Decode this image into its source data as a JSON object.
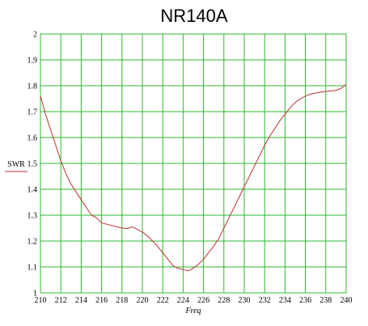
{
  "chart_data": {
    "type": "line",
    "title": "NR140A",
    "xlabel": "Freq",
    "ylabel": "",
    "xlim": [
      210,
      240
    ],
    "ylim": [
      1,
      2
    ],
    "x_ticks": [
      210,
      212,
      214,
      216,
      218,
      220,
      222,
      224,
      226,
      228,
      230,
      232,
      234,
      236,
      238,
      240
    ],
    "y_ticks": [
      1,
      1.1,
      1.2,
      1.3,
      1.4,
      1.5,
      1.6,
      1.7,
      1.8,
      1.9,
      2
    ],
    "grid": true,
    "grid_color": "#2db82d",
    "line_color": "#c03030",
    "legend": {
      "position": "left",
      "entries": [
        {
          "name": "SWR",
          "color": "#c03030"
        }
      ]
    },
    "series": [
      {
        "name": "SWR",
        "x": [
          210,
          210.5,
          211,
          211.5,
          212,
          212.5,
          213,
          213.5,
          214,
          214.5,
          215,
          215.5,
          216,
          216.5,
          217,
          217.5,
          218,
          218.5,
          219,
          219.5,
          220,
          220.5,
          221,
          221.5,
          222,
          222.5,
          223,
          223.5,
          224,
          224.5,
          225,
          225.5,
          226,
          226.5,
          227,
          227.5,
          228,
          228.5,
          229,
          229.5,
          230,
          230.5,
          231,
          231.5,
          232,
          232.5,
          233,
          233.5,
          234,
          234.5,
          235,
          235.5,
          236,
          236.5,
          237,
          237.5,
          238,
          238.5,
          239,
          239.5,
          240
        ],
        "values": [
          1.76,
          1.69,
          1.63,
          1.57,
          1.51,
          1.46,
          1.42,
          1.39,
          1.36,
          1.33,
          1.3,
          1.29,
          1.27,
          1.265,
          1.26,
          1.255,
          1.25,
          1.248,
          1.255,
          1.245,
          1.235,
          1.22,
          1.2,
          1.18,
          1.155,
          1.13,
          1.105,
          1.095,
          1.09,
          1.085,
          1.095,
          1.11,
          1.13,
          1.155,
          1.18,
          1.21,
          1.25,
          1.29,
          1.33,
          1.37,
          1.41,
          1.45,
          1.49,
          1.53,
          1.57,
          1.605,
          1.635,
          1.665,
          1.69,
          1.715,
          1.735,
          1.75,
          1.76,
          1.768,
          1.772,
          1.775,
          1.778,
          1.78,
          1.782,
          1.79,
          1.805
        ]
      }
    ]
  }
}
